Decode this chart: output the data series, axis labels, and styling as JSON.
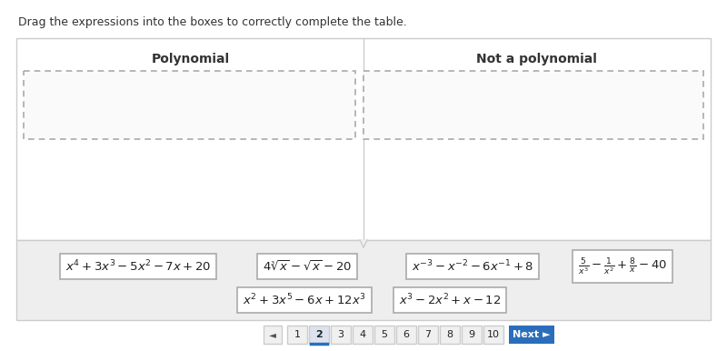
{
  "title_text": "Drag the expressions into the boxes to correctly complete the table.",
  "col1_header": "Polynomial",
  "col2_header": "Not a polynomial",
  "white": "#ffffff",
  "border_color": "#cccccc",
  "dashed_border": "#aaaaaa",
  "expr1": "$x^4 + 3x^3 - 5x^2 - 7x + 20$",
  "expr2": "$4\\sqrt[3]{x} - \\sqrt{x} - 20$",
  "expr3": "$x^{-3} - x^{-2} - 6x^{-1} + 8$",
  "expr4": "$\\frac{5}{x^3} - \\frac{1}{x^2} + \\frac{8}{x} - 40$",
  "expr5": "$x^2 + 3x^5 - 6x + 12x^3$",
  "expr6": "$x^3 - 2x^2 + x - 12$",
  "nav_nums": [
    "1",
    "2",
    "3",
    "4",
    "5",
    "6",
    "7",
    "8",
    "9",
    "10"
  ],
  "active_page": "2",
  "next_btn_color": "#2a6ebb"
}
